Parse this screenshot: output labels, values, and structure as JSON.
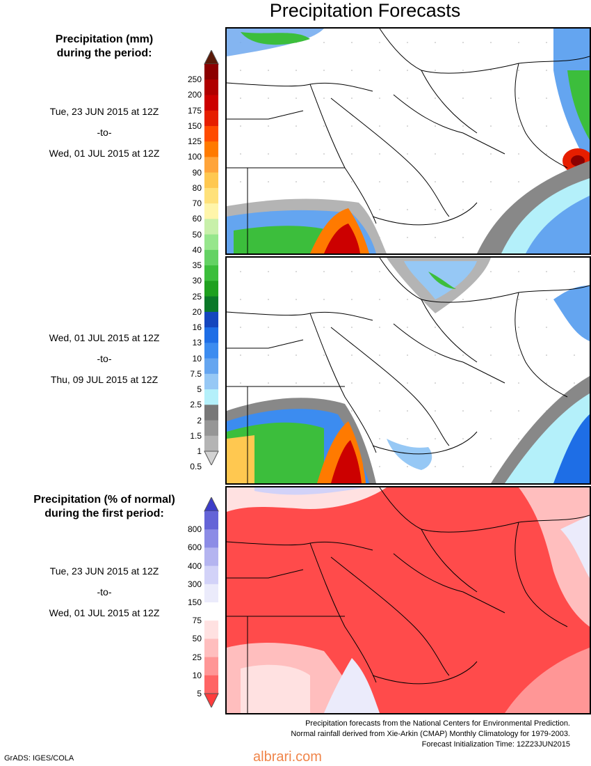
{
  "title": "Precipitation Forecasts",
  "section_mm": {
    "heading_line1": "Precipitation (mm)",
    "heading_line2": "during the period:"
  },
  "period1": {
    "start": "Tue, 23 JUN 2015 at 12Z",
    "sep": "-to-",
    "end": "Wed, 01 JUL 2015 at 12Z"
  },
  "period2": {
    "start": "Wed, 01 JUL 2015 at 12Z",
    "sep": "-to-",
    "end": "Thu, 09 JUL 2015 at 12Z"
  },
  "section_pct": {
    "heading_line1": "Precipitation (% of normal)",
    "heading_line2": "during the first period:"
  },
  "period3": {
    "start": "Tue, 23 JUN 2015 at 12Z",
    "sep": "-to-",
    "end": "Wed, 01 JUL 2015 at 12Z"
  },
  "mm_scale": {
    "labels": [
      "250",
      "200",
      "175",
      "150",
      "125",
      "100",
      "90",
      "80",
      "70",
      "60",
      "50",
      "40",
      "35",
      "30",
      "25",
      "20",
      "16",
      "13",
      "10",
      "7.5",
      "5",
      "2.5",
      "2",
      "1.5",
      "1",
      "0.5"
    ],
    "colors": [
      "#5a1a08",
      "#8c0000",
      "#b00000",
      "#cc0000",
      "#e61e00",
      "#ff4b00",
      "#ff7a00",
      "#ffa43a",
      "#ffc850",
      "#ffe17a",
      "#fff5aa",
      "#c8f0aa",
      "#96e68c",
      "#64d264",
      "#3cbe3c",
      "#1ea01e",
      "#0a7828",
      "#1446be",
      "#1e6ee6",
      "#3c8cf0",
      "#64a5f0",
      "#96c8f5",
      "#b4f0fa",
      "#787878",
      "#969696",
      "#b4b4b4",
      "#d2d2d2"
    ]
  },
  "pct_scale": {
    "labels": [
      "800",
      "600",
      "400",
      "300",
      "150",
      "75",
      "50",
      "25",
      "10",
      "5"
    ],
    "colors": [
      "#3c3cc8",
      "#6464d7",
      "#8c8ce6",
      "#b4b4f0",
      "#d2d2f8",
      "#ebebfb",
      "#ffffff",
      "#ffe1e1",
      "#ffbebe",
      "#ff9696",
      "#ff6464",
      "#ff3c3c"
    ]
  },
  "footer": {
    "line1": "Precipitation forecasts from the National Centers for Environmental Prediction.",
    "line2": "Normal rainfall derived from Xie-Arkin (CMAP) Monthly Climatology for 1979-2003.",
    "line3": "Forecast Initialization Time: 12Z23JUN2015"
  },
  "credit": "GrADS: IGES/COLA",
  "watermark": "albrari.com"
}
